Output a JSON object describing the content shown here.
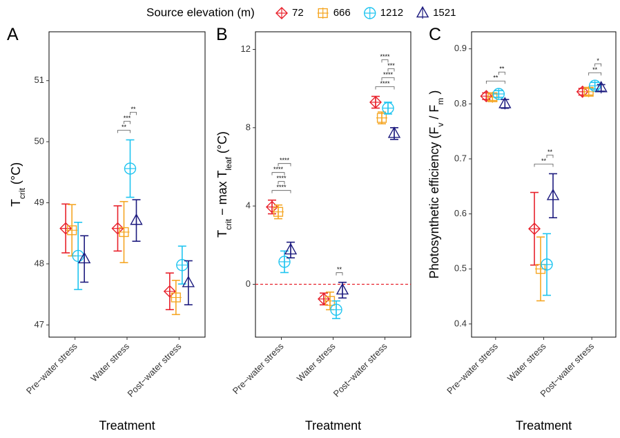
{
  "legend": {
    "title": "Source elevation (m)",
    "names": [
      "72",
      "666",
      "1212",
      "1521"
    ],
    "colors": [
      "#e8202a",
      "#f5a623",
      "#1ec4f0",
      "#1c1a7e"
    ],
    "markers": [
      "diamond",
      "square",
      "circle",
      "triangle"
    ]
  },
  "chart_data": [
    {
      "type": "errorbar",
      "panel": "A",
      "y_label": [
        {
          "text": "T",
          "sub": false
        },
        {
          "text": "crit",
          "sub": true
        },
        {
          "text": " (°C)",
          "sub": false
        }
      ],
      "x_label": "Treatment",
      "categories": [
        "Pre−water stress",
        "Water stress",
        "Post−water stress"
      ],
      "ylim": [
        46.8,
        51.8
      ],
      "yticks": [
        47,
        48,
        49,
        50,
        51
      ],
      "series": [
        {
          "values": [
            48.58,
            48.58,
            47.55
          ],
          "errors": [
            0.4,
            0.37,
            0.3
          ]
        },
        {
          "values": [
            48.55,
            48.52,
            47.45
          ],
          "errors": [
            0.42,
            0.5,
            0.28
          ]
        },
        {
          "values": [
            48.13,
            49.56,
            47.98
          ],
          "errors": [
            0.55,
            0.47,
            0.31
          ]
        },
        {
          "values": [
            48.08,
            48.71,
            47.69
          ],
          "errors": [
            0.38,
            0.34,
            0.36
          ]
        }
      ],
      "brackets": [
        {
          "category": 1,
          "pair": [
            0,
            2
          ],
          "label": "**"
        },
        {
          "category": 1,
          "pair": [
            1,
            2
          ],
          "label": "***"
        },
        {
          "category": 1,
          "pair": [
            2,
            3
          ],
          "label": "**"
        }
      ]
    },
    {
      "type": "errorbar",
      "panel": "B",
      "y_label": [
        {
          "text": "T",
          "sub": false
        },
        {
          "text": "crit",
          "sub": true
        },
        {
          "text": " − max T",
          "sub": false
        },
        {
          "text": "leaf",
          "sub": true
        },
        {
          "text": " (°C)",
          "sub": false
        }
      ],
      "x_label": "Treatment",
      "categories": [
        "Pre−water stress",
        "Water stress",
        "Post−water stress"
      ],
      "ylim": [
        -2.7,
        12.9
      ],
      "yticks": [
        0,
        4,
        8,
        12
      ],
      "hline": 0,
      "hline_color": "#e8202a",
      "series": [
        {
          "values": [
            3.95,
            -0.75,
            9.3
          ],
          "errors": [
            0.35,
            0.3,
            0.3
          ]
        },
        {
          "values": [
            3.7,
            -0.85,
            8.5
          ],
          "errors": [
            0.35,
            0.45,
            0.3
          ]
        },
        {
          "values": [
            1.15,
            -1.3,
            9.0
          ],
          "errors": [
            0.55,
            0.45,
            0.3
          ]
        },
        {
          "values": [
            1.75,
            -0.3,
            7.7
          ],
          "errors": [
            0.4,
            0.4,
            0.3
          ]
        }
      ],
      "brackets": [
        {
          "category": 0,
          "pair": [
            0,
            3
          ],
          "label": "****"
        },
        {
          "category": 0,
          "pair": [
            1,
            2
          ],
          "label": "****"
        },
        {
          "category": 0,
          "pair": [
            0,
            2
          ],
          "label": "****"
        },
        {
          "category": 0,
          "pair": [
            1,
            3
          ],
          "label": "****"
        },
        {
          "category": 1,
          "pair": [
            2,
            3
          ],
          "label": "**"
        },
        {
          "category": 2,
          "pair": [
            0,
            3
          ],
          "label": "****"
        },
        {
          "category": 2,
          "pair": [
            1,
            3
          ],
          "label": "****"
        },
        {
          "category": 2,
          "pair": [
            2,
            3
          ],
          "label": "***"
        },
        {
          "category": 2,
          "pair": [
            1,
            2
          ],
          "label": "****"
        }
      ]
    },
    {
      "type": "errorbar",
      "panel": "C",
      "y_label": [
        {
          "text": "Photosynthetic efficiency (F",
          "sub": false
        },
        {
          "text": "v",
          "sub": true
        },
        {
          "text": " / F",
          "sub": false
        },
        {
          "text": "m",
          "sub": true
        },
        {
          "text": " )",
          "sub": false
        }
      ],
      "x_label": "Treatment",
      "categories": [
        "Pre−water stress",
        "Water stress",
        "Post−water stress"
      ],
      "ylim": [
        0.376,
        0.931
      ],
      "yticks": [
        0.4,
        0.5,
        0.6,
        0.7,
        0.8,
        0.9
      ],
      "series": [
        {
          "values": [
            0.814,
            0.573,
            0.822
          ],
          "errors": [
            0.006,
            0.066,
            0.006
          ]
        },
        {
          "values": [
            0.812,
            0.5,
            0.822
          ],
          "errors": [
            0.006,
            0.058,
            0.006
          ]
        },
        {
          "values": [
            0.818,
            0.508,
            0.833
          ],
          "errors": [
            0.006,
            0.056,
            0.006
          ]
        },
        {
          "values": [
            0.8,
            0.633,
            0.829
          ],
          "errors": [
            0.008,
            0.04,
            0.006
          ]
        }
      ],
      "brackets": [
        {
          "category": 0,
          "pair": [
            0,
            3
          ],
          "label": "**"
        },
        {
          "category": 0,
          "pair": [
            2,
            3
          ],
          "label": "**"
        },
        {
          "category": 1,
          "pair": [
            0,
            3
          ],
          "label": "**"
        },
        {
          "category": 1,
          "pair": [
            2,
            3
          ],
          "label": "**"
        },
        {
          "category": 2,
          "pair": [
            1,
            3
          ],
          "label": "**"
        },
        {
          "category": 2,
          "pair": [
            2,
            3
          ],
          "label": "*"
        }
      ]
    }
  ]
}
